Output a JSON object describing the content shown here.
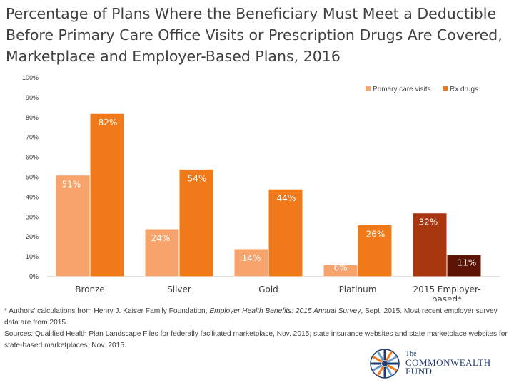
{
  "title_lines": [
    "Percentage of Plans Where the Beneficiary Must Meet a Deductible",
    "Before Primary Care Office Visits or Prescription Drugs Are Covered,",
    "Marketplace and Employer-Based Plans, 2016"
  ],
  "chart_data": {
    "type": "bar",
    "title": "Percentage of Plans Where the Beneficiary Must Meet a Deductible Before Primary Care Office Visits or Prescription Drugs Are Covered, Marketplace and Employer-Based Plans, 2016",
    "categories": [
      "Bronze",
      "Silver",
      "Gold",
      "Platinum",
      "2015 Employer-based*"
    ],
    "series": [
      {
        "name": "Primary care visits",
        "values": [
          51,
          24,
          14,
          6,
          32
        ],
        "color": "#f6a46b"
      },
      {
        "name": "Rx drugs",
        "values": [
          82,
          54,
          44,
          26,
          11
        ],
        "color": "#f07a1a"
      }
    ],
    "employer_colors": [
      "#a8360f",
      "#5c1505"
    ],
    "data_labels": {
      "Primary care visits": [
        "51%",
        "24%",
        "14%",
        "6%",
        "32%"
      ],
      "Rx drugs": [
        "82%",
        "54%",
        "44%",
        "26%",
        "11%"
      ]
    },
    "yticks": [
      0,
      10,
      20,
      30,
      40,
      50,
      60,
      70,
      80,
      90,
      100
    ],
    "ytick_labels": [
      "0%",
      "10%",
      "20%",
      "30%",
      "40%",
      "50%",
      "60%",
      "70%",
      "80%",
      "90%",
      "100%"
    ],
    "ylim": [
      0,
      100
    ],
    "xlabel": "",
    "ylabel": "",
    "legend_position": "top-right",
    "grid": false
  },
  "footnote": {
    "note_pre": "* Authors' calculations from Henry J. Kaiser Family Foundation, ",
    "note_italic": "Employer Health Benefits: 2015 Annual Survey",
    "note_post": ", Sept. 2015. Most recent employer survey data are from 2015.",
    "sources": "Sources: Qualified Health Plan Landscape Files for federally facilitated marketplace, Nov. 2015; state insurance websites and state marketplace websites for state-based marketplaces, Nov. 2015."
  },
  "logo": {
    "line1": "The",
    "line2": "COMMONWEALTH",
    "line3": "FUND",
    "colors": [
      "#1f3b70",
      "#f07a1a",
      "#6a9bd0"
    ]
  }
}
